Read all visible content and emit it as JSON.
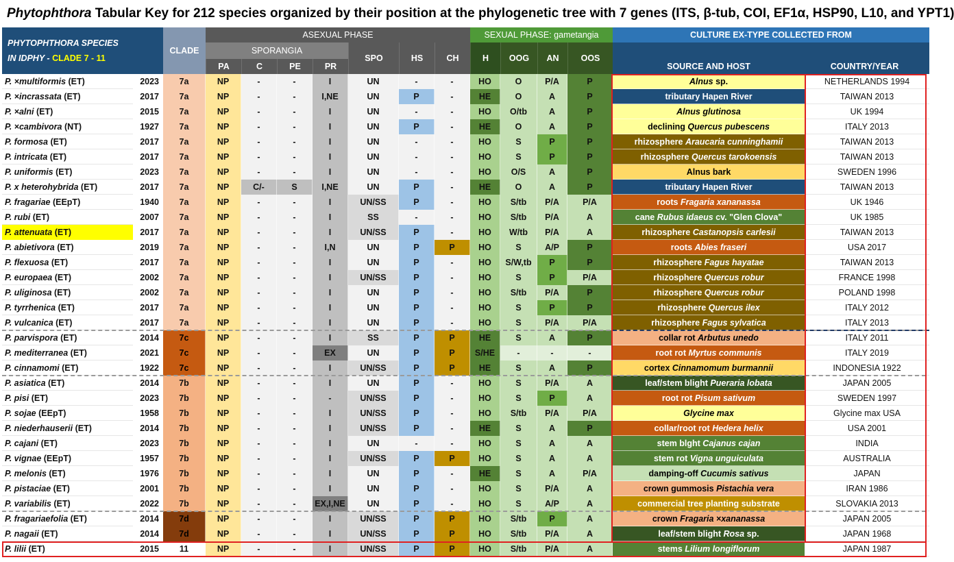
{
  "title": {
    "genus": "Phytophthora",
    "text": " Tabular Key for 212 species organized by their position at the phylogenetic tree with 7 genes (ITS, β-tub, COI, EF1α, HSP90, L10, and YPT1)"
  },
  "header": {
    "species_line1": "PHYTOPHTHORA  SPECIES",
    "species_line2a": "IN IDPHY - ",
    "species_line2b": "CLADE 7 - 11",
    "clade": "CLADE",
    "asexual": "ASEXUAL PHASE",
    "sporangia": "SPORANGIA",
    "sexual": "SEXUAL PHASE: gametangia",
    "culture": "CULTURE EX-TYPE COLLECTED FROM",
    "source": "SOURCE AND HOST",
    "country": "COUNTRY/YEAR",
    "pa": "PA",
    "c": "C",
    "pe": "PE",
    "pr": "PR",
    "spo": "SPO",
    "hs": "HS",
    "ch": "CH",
    "h": "H",
    "oog": "OOG",
    "an": "AN",
    "oos": "OOS"
  },
  "colors": {
    "navy": "#1f4e79",
    "darkgray": "#595959",
    "midgray": "#808080",
    "green_hdr": "#4f9a38",
    "clade7a": "#f4b183",
    "clade7c": "#c55a11",
    "clade7b": "#f4b183",
    "clade7d": "#843c0c",
    "highlight": "#ffff00",
    "border_red": "#e02020"
  },
  "rows": [
    {
      "name": "P. ×multiformis",
      "nameTag": "(ET)",
      "year": "2023",
      "clade": "7a",
      "pa": "NP",
      "c": "-",
      "pe": "-",
      "pr": "I",
      "spo": "UN",
      "hs": "-",
      "ch": "-",
      "h": "HO",
      "oog": "O",
      "an": "P/A",
      "oos": "P",
      "src": [
        [
          "",
          "n"
        ],
        [
          "Alnus",
          "i"
        ],
        [
          " sp.",
          "n"
        ]
      ],
      "srcBg": "#ffff99",
      "srcFg": "#000",
      "country": "NETHERLANDS 1994"
    },
    {
      "name": "P. ×incrassata",
      "nameTag": "(ET)",
      "year": "2017",
      "clade": "7a",
      "pa": "NP",
      "c": "-",
      "pe": "-",
      "pr": "I,NE",
      "spo": "UN",
      "hs": "P",
      "ch": "-",
      "h": "HE",
      "oog": "O",
      "an": "A",
      "oos": "P",
      "src": [
        [
          "tributary Hapen River",
          "n"
        ]
      ],
      "srcBg": "#1f4e79",
      "srcFg": "#fff",
      "country": "TAIWAN 2013"
    },
    {
      "name": "P. ×alni",
      "nameTag": "(ET)",
      "year": "2015",
      "clade": "7a",
      "pa": "NP",
      "c": "-",
      "pe": "-",
      "pr": "I",
      "spo": "UN",
      "hs": "-",
      "ch": "-",
      "h": "HO",
      "oog": "O/tb",
      "an": "A",
      "oos": "P",
      "src": [
        [
          "Alnus glutinosa",
          "i"
        ]
      ],
      "srcBg": "#ffff99",
      "srcFg": "#000",
      "country": "UK 1994"
    },
    {
      "name": "P. ×cambivora",
      "nameTag": "(NT)",
      "year": "1927",
      "clade": "7a",
      "pa": "NP",
      "c": "-",
      "pe": "-",
      "pr": "I",
      "spo": "UN",
      "hs": "P",
      "ch": "-",
      "h": "HE",
      "oog": "O",
      "an": "A",
      "oos": "P",
      "src": [
        [
          "declining ",
          "n"
        ],
        [
          "Quercus pubescens",
          "i"
        ]
      ],
      "srcBg": "#ffff99",
      "srcFg": "#000",
      "country": "ITALY 2013"
    },
    {
      "name": "P. formosa",
      "nameTag": "(ET)",
      "year": "2017",
      "clade": "7a",
      "pa": "NP",
      "c": "-",
      "pe": "-",
      "pr": "I",
      "spo": "UN",
      "hs": "-",
      "ch": "-",
      "h": "HO",
      "oog": "S",
      "an": "P",
      "oos": "P",
      "src": [
        [
          "rhizosphere ",
          "n"
        ],
        [
          "Araucaria cunninghamii",
          "i"
        ]
      ],
      "srcBg": "#7f6000",
      "srcFg": "#fff",
      "country": "TAIWAN 2013"
    },
    {
      "name": "P. intricata",
      "nameTag": "(ET)",
      "year": "2017",
      "clade": "7a",
      "pa": "NP",
      "c": "-",
      "pe": "-",
      "pr": "I",
      "spo": "UN",
      "hs": "-",
      "ch": "-",
      "h": "HO",
      "oog": "S",
      "an": "P",
      "oos": "P",
      "src": [
        [
          "rhizosphere ",
          "n"
        ],
        [
          "Quercus tarokoensis",
          "i"
        ]
      ],
      "srcBg": "#7f6000",
      "srcFg": "#fff",
      "country": "TAIWAN 2013"
    },
    {
      "name": "P. uniformis",
      "nameTag": "(ET)",
      "year": "2023",
      "clade": "7a",
      "pa": "NP",
      "c": "-",
      "pe": "-",
      "pr": "I",
      "spo": "UN",
      "hs": "-",
      "ch": "-",
      "h": "HO",
      "oog": "O/S",
      "an": "A",
      "oos": "P",
      "src": [
        [
          "Alnus bark",
          "n"
        ]
      ],
      "srcBg": "#ffd966",
      "srcFg": "#000",
      "country": "SWEDEN 1996"
    },
    {
      "name": "P. x heterohybrida",
      "nameTag": "(ET)",
      "year": "2017",
      "clade": "7a",
      "pa": "NP",
      "c": "C/-",
      "pe": "S",
      "pr": "I,NE",
      "spo": "UN",
      "hs": "P",
      "ch": "-",
      "h": "HE",
      "oog": "O",
      "an": "A",
      "oos": "P",
      "src": [
        [
          "tributary Hapen River",
          "n"
        ]
      ],
      "srcBg": "#1f4e79",
      "srcFg": "#fff",
      "country": "TAIWAN 2013"
    },
    {
      "name": "P. fragariae",
      "nameTag": "(EEpT)",
      "year": "1940",
      "clade": "7a",
      "pa": "NP",
      "c": "-",
      "pe": "-",
      "pr": "I",
      "spo": "UN/SS",
      "hs": "P",
      "ch": "-",
      "h": "HO",
      "oog": "S/tb",
      "an": "P/A",
      "oos": "P/A",
      "src": [
        [
          "roots ",
          "n"
        ],
        [
          "Fragaria xananassa",
          "i"
        ]
      ],
      "srcBg": "#c55a11",
      "srcFg": "#fff",
      "country": "UK 1946"
    },
    {
      "name": "P. rubi",
      "nameTag": "(ET)",
      "year": "2007",
      "clade": "7a",
      "pa": "NP",
      "c": "-",
      "pe": "-",
      "pr": "I",
      "spo": "SS",
      "hs": "-",
      "ch": "-",
      "h": "HO",
      "oog": "S/tb",
      "an": "P/A",
      "oos": "A",
      "src": [
        [
          "cane ",
          "n"
        ],
        [
          "Rubus idaeus",
          "i"
        ],
        [
          " cv. \"Glen Clova\"",
          "n"
        ]
      ],
      "srcBg": "#548235",
      "srcFg": "#fff",
      "country": "UK 1985"
    },
    {
      "name": "P. attenuata",
      "nameTag": "(ET)",
      "year": "2017",
      "clade": "7a",
      "pa": "NP",
      "c": "-",
      "pe": "-",
      "pr": "I",
      "spo": "UN/SS",
      "hs": "P",
      "ch": "-",
      "h": "HO",
      "oog": "W/tb",
      "an": "P/A",
      "oos": "A",
      "src": [
        [
          "rhizosphere ",
          "n"
        ],
        [
          "Castanopsis carlesii",
          "i"
        ]
      ],
      "srcBg": "#7f6000",
      "srcFg": "#fff",
      "country": "TAIWAN 2013",
      "hl": true
    },
    {
      "name": "P. abietivora",
      "nameTag": "(ET)",
      "year": "2019",
      "clade": "7a",
      "pa": "NP",
      "c": "-",
      "pe": "-",
      "pr": "I,N",
      "spo": "UN",
      "hs": "P",
      "ch": "P",
      "h": "HO",
      "oog": "S",
      "an": "A/P",
      "oos": "P",
      "src": [
        [
          "roots ",
          "n"
        ],
        [
          "Abies fraseri",
          "i"
        ]
      ],
      "srcBg": "#c55a11",
      "srcFg": "#fff",
      "country": "USA 2017"
    },
    {
      "name": "P. flexuosa",
      "nameTag": "(ET)",
      "year": "2017",
      "clade": "7a",
      "pa": "NP",
      "c": "-",
      "pe": "-",
      "pr": "I",
      "spo": "UN",
      "hs": "P",
      "ch": "-",
      "h": "HO",
      "oog": "S/W,tb",
      "an": "P",
      "oos": "P",
      "src": [
        [
          "rhizosphere ",
          "n"
        ],
        [
          "Fagus hayatae",
          "i"
        ]
      ],
      "srcBg": "#7f6000",
      "srcFg": "#fff",
      "country": "TAIWAN 2013"
    },
    {
      "name": "P. europaea",
      "nameTag": "(ET)",
      "year": "2002",
      "clade": "7a",
      "pa": "NP",
      "c": "-",
      "pe": "-",
      "pr": "I",
      "spo": "UN/SS",
      "hs": "P",
      "ch": "-",
      "h": "HO",
      "oog": "S",
      "an": "P",
      "oos": "P/A",
      "src": [
        [
          "rhizosphere ",
          "n"
        ],
        [
          "Quercus robur",
          "i"
        ]
      ],
      "srcBg": "#7f6000",
      "srcFg": "#fff",
      "country": "FRANCE 1998"
    },
    {
      "name": "P. uliginosa",
      "nameTag": "(ET)",
      "year": "2002",
      "clade": "7a",
      "pa": "NP",
      "c": "-",
      "pe": "-",
      "pr": "I",
      "spo": "UN",
      "hs": "P",
      "ch": "-",
      "h": "HO",
      "oog": "S/tb",
      "an": "P/A",
      "oos": "P",
      "src": [
        [
          "rhizosphere ",
          "n"
        ],
        [
          "Quercus robur",
          "i"
        ]
      ],
      "srcBg": "#7f6000",
      "srcFg": "#fff",
      "country": "POLAND 1998"
    },
    {
      "name": "P. tyrrhenica",
      "nameTag": "(ET)",
      "year": "2017",
      "clade": "7a",
      "pa": "NP",
      "c": "-",
      "pe": "-",
      "pr": "I",
      "spo": "UN",
      "hs": "P",
      "ch": "-",
      "h": "HO",
      "oog": "S",
      "an": "P",
      "oos": "P",
      "src": [
        [
          "rhizosphere ",
          "n"
        ],
        [
          "Quercus ilex",
          "i"
        ]
      ],
      "srcBg": "#7f6000",
      "srcFg": "#fff",
      "country": "ITALY 2012"
    },
    {
      "name": "P. vulcanica",
      "nameTag": "(ET)",
      "year": "2017",
      "clade": "7a",
      "pa": "NP",
      "c": "-",
      "pe": "-",
      "pr": "I",
      "spo": "UN",
      "hs": "P",
      "ch": "-",
      "h": "HO",
      "oog": "S",
      "an": "P/A",
      "oos": "P/A",
      "src": [
        [
          "rhizosphere ",
          "n"
        ],
        [
          "Fagus sylvatica",
          "i"
        ]
      ],
      "srcBg": "#7f6000",
      "srcFg": "#fff",
      "country": "ITALY 2013"
    },
    {
      "name": "P. parvispora",
      "nameTag": "(ET)",
      "year": "2014",
      "clade": "7c",
      "pa": "NP",
      "c": "-",
      "pe": "-",
      "pr": "I",
      "spo": "SS",
      "hs": "P",
      "ch": "P",
      "h": "HE",
      "oog": "S",
      "an": "A",
      "oos": "P",
      "src": [
        [
          "collar rot ",
          "n"
        ],
        [
          "Arbutus unedo",
          "i"
        ]
      ],
      "srcBg": "#f4b183",
      "srcFg": "#000",
      "country": "ITALY 2011"
    },
    {
      "name": "P. mediterranea",
      "nameTag": "(ET)",
      "year": "2021",
      "clade": "7c",
      "pa": "NP",
      "c": "-",
      "pe": "-",
      "pr": "EX",
      "spo": "UN",
      "hs": "P",
      "ch": "P",
      "h": "S/HE",
      "oog": "-",
      "an": "-",
      "oos": "-",
      "src": [
        [
          "root rot ",
          "n"
        ],
        [
          "Myrtus communis",
          "i"
        ]
      ],
      "srcBg": "#c55a11",
      "srcFg": "#fff",
      "country": "ITALY 2019"
    },
    {
      "name": "P. cinnamomi",
      "nameTag": "(ET)",
      "year": "1922",
      "clade": "7c",
      "pa": "NP",
      "c": "-",
      "pe": "-",
      "pr": "I",
      "spo": "UN/SS",
      "hs": "P",
      "ch": "P",
      "h": "HE",
      "oog": "S",
      "an": "A",
      "oos": "P",
      "src": [
        [
          "cortex ",
          "n"
        ],
        [
          "Cinnamomum burmannii",
          "i"
        ]
      ],
      "srcBg": "#ffd966",
      "srcFg": "#000",
      "country": "INDONESIA 1922"
    },
    {
      "name": "P. asiatica",
      "nameTag": "(ET)",
      "year": "2014",
      "clade": "7b",
      "pa": "NP",
      "c": "-",
      "pe": "-",
      "pr": "I",
      "spo": "UN",
      "hs": "P",
      "ch": "-",
      "h": "HO",
      "oog": "S",
      "an": "P/A",
      "oos": "A",
      "src": [
        [
          "leaf/stem blight ",
          "n"
        ],
        [
          "Pueraria lobata",
          "i"
        ]
      ],
      "srcBg": "#375623",
      "srcFg": "#fff",
      "country": "JAPAN 2005"
    },
    {
      "name": "P. pisi",
      "nameTag": "(ET)",
      "year": "2023",
      "clade": "7b",
      "pa": "NP",
      "c": "-",
      "pe": "-",
      "pr": "-",
      "spo": "UN/SS",
      "hs": "P",
      "ch": "-",
      "h": "HO",
      "oog": "S",
      "an": "P",
      "oos": "A",
      "src": [
        [
          "root rot ",
          "n"
        ],
        [
          "Pisum sativum",
          "i"
        ]
      ],
      "srcBg": "#c55a11",
      "srcFg": "#fff",
      "country": "SWEDEN 1997"
    },
    {
      "name": "P. sojae",
      "nameTag": "(EEpT)",
      "year": "1958",
      "clade": "7b",
      "pa": "NP",
      "c": "-",
      "pe": "-",
      "pr": "I",
      "spo": "UN/SS",
      "hs": "P",
      "ch": "-",
      "h": "HO",
      "oog": "S/tb",
      "an": "P/A",
      "oos": "P/A",
      "src": [
        [
          "Glycine max",
          "i"
        ]
      ],
      "srcBg": "#ffff99",
      "srcFg": "#000",
      "country": "Glycine max USA"
    },
    {
      "name": "P. niederhauserii",
      "nameTag": "(ET)",
      "year": "2014",
      "clade": "7b",
      "pa": "NP",
      "c": "-",
      "pe": "-",
      "pr": "I",
      "spo": "UN/SS",
      "hs": "P",
      "ch": "-",
      "h": "HE",
      "oog": "S",
      "an": "A",
      "oos": "P",
      "src": [
        [
          "collar/root rot ",
          "n"
        ],
        [
          "Hedera helix",
          "i"
        ]
      ],
      "srcBg": "#c55a11",
      "srcFg": "#fff",
      "country": "USA 2001"
    },
    {
      "name": "P. cajani",
      "nameTag": "(ET)",
      "year": "2023",
      "clade": "7b",
      "pa": "NP",
      "c": "-",
      "pe": "-",
      "pr": "I",
      "spo": "UN",
      "hs": "-",
      "ch": "-",
      "h": "HO",
      "oog": "S",
      "an": "A",
      "oos": "A",
      "src": [
        [
          "stem blght ",
          "n"
        ],
        [
          "Cajanus cajan",
          "i"
        ]
      ],
      "srcBg": "#548235",
      "srcFg": "#fff",
      "country": "INDIA"
    },
    {
      "name": "P. vignae",
      "nameTag": "(EEpT)",
      "year": "1957",
      "clade": "7b",
      "pa": "NP",
      "c": "-",
      "pe": "-",
      "pr": "I",
      "spo": "UN/SS",
      "hs": "P",
      "ch": "P",
      "h": "HO",
      "oog": "S",
      "an": "A",
      "oos": "A",
      "src": [
        [
          "stem rot ",
          "n"
        ],
        [
          "Vigna unguiculata",
          "i"
        ]
      ],
      "srcBg": "#548235",
      "srcFg": "#fff",
      "country": "AUSTRALIA"
    },
    {
      "name": "P. melonis",
      "nameTag": "(ET)",
      "year": "1976",
      "clade": "7b",
      "pa": "NP",
      "c": "-",
      "pe": "-",
      "pr": "I",
      "spo": "UN",
      "hs": "P",
      "ch": "-",
      "h": "HE",
      "oog": "S",
      "an": "A",
      "oos": "P/A",
      "src": [
        [
          "damping-off ",
          "n"
        ],
        [
          "Cucumis sativus",
          "i"
        ]
      ],
      "srcBg": "#c5e0b4",
      "srcFg": "#000",
      "country": "JAPAN"
    },
    {
      "name": "P. pistaciae",
      "nameTag": "(ET)",
      "year": "2001",
      "clade": "7b",
      "pa": "NP",
      "c": "-",
      "pe": "-",
      "pr": "I",
      "spo": "UN",
      "hs": "P",
      "ch": "-",
      "h": "HO",
      "oog": "S",
      "an": "P/A",
      "oos": "A",
      "src": [
        [
          "crown gummosis ",
          "n"
        ],
        [
          "Pistachia vera",
          "i"
        ]
      ],
      "srcBg": "#f4b183",
      "srcFg": "#000",
      "country": "IRAN 1986"
    },
    {
      "name": "P. variabilis",
      "nameTag": "(ET)",
      "year": "2022",
      "clade": "7b",
      "pa": "NP",
      "c": "-",
      "pe": "-",
      "pr": "EX,I,NE",
      "spo": "UN",
      "hs": "P",
      "ch": "-",
      "h": "HO",
      "oog": "S",
      "an": "A/P",
      "oos": "A",
      "src": [
        [
          "commercial tree planting substrate",
          "n"
        ]
      ],
      "srcBg": "#bf8f00",
      "srcFg": "#fff",
      "country": "SLOVAKIA 2013"
    },
    {
      "name": "P. fragariaefolia",
      "nameTag": "(ET)",
      "year": "2014",
      "clade": "7d",
      "pa": "NP",
      "c": "-",
      "pe": "-",
      "pr": "I",
      "spo": "UN/SS",
      "hs": "P",
      "ch": "P",
      "h": "HO",
      "oog": "S/tb",
      "an": "P",
      "oos": "A",
      "src": [
        [
          "crown ",
          "n"
        ],
        [
          "Fragaria ×xananassa",
          "i"
        ]
      ],
      "srcBg": "#f4b183",
      "srcFg": "#000",
      "country": "JAPAN 2005"
    },
    {
      "name": "P. nagaii",
      "nameTag": "(ET)",
      "year": "2014",
      "clade": "7d",
      "pa": "NP",
      "c": "-",
      "pe": "-",
      "pr": "I",
      "spo": "UN/SS",
      "hs": "P",
      "ch": "P",
      "h": "HO",
      "oog": "S/tb",
      "an": "P/A",
      "oos": "A",
      "src": [
        [
          "leaf/stem blight ",
          "n"
        ],
        [
          "Rosa",
          "i"
        ],
        [
          " sp.",
          "n"
        ]
      ],
      "srcBg": "#375623",
      "srcFg": "#fff",
      "country": "JAPAN 1968"
    },
    {
      "name": "P. lilii",
      "nameTag": "(ET)",
      "year": "2015",
      "clade": "11",
      "pa": "NP",
      "c": "-",
      "pe": "-",
      "pr": "I",
      "spo": "UN/SS",
      "hs": "P",
      "ch": "P",
      "h": "HO",
      "oog": "S/tb",
      "an": "P/A",
      "oos": "A",
      "src": [
        [
          "stems ",
          "n"
        ],
        [
          "Lilium longiflorum",
          "i"
        ]
      ],
      "srcBg": "#548235",
      "srcFg": "#fff",
      "country": "JAPAN 1987"
    }
  ]
}
